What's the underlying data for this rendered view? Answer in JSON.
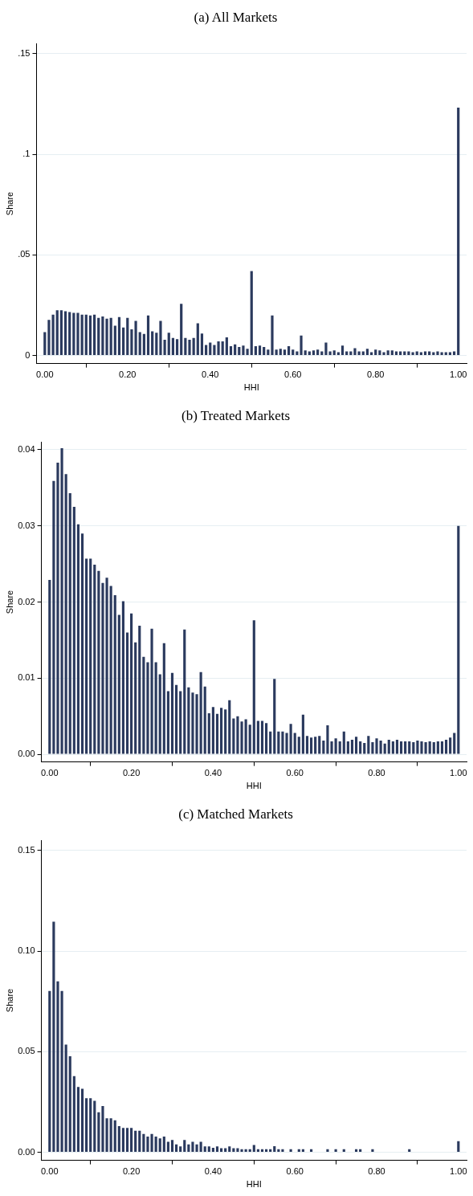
{
  "chart_data": [
    {
      "type": "bar",
      "title": "(a) All Markets",
      "xlabel": "HHI",
      "ylabel": "Share",
      "color": "#2b3a5e",
      "grid": "y",
      "x": [
        0,
        0.01,
        0.02,
        0.03,
        0.04,
        0.05,
        0.06,
        0.07,
        0.08,
        0.09,
        0.1,
        0.11,
        0.12,
        0.13,
        0.14,
        0.15,
        0.16,
        0.17,
        0.18,
        0.19,
        0.2,
        0.21,
        0.22,
        0.23,
        0.24,
        0.25,
        0.26,
        0.27,
        0.28,
        0.29,
        0.3,
        0.31,
        0.32,
        0.33,
        0.34,
        0.35,
        0.36,
        0.37,
        0.38,
        0.39,
        0.4,
        0.41,
        0.42,
        0.43,
        0.44,
        0.45,
        0.46,
        0.47,
        0.48,
        0.49,
        0.5,
        0.51,
        0.52,
        0.53,
        0.54,
        0.55,
        0.56,
        0.57,
        0.58,
        0.59,
        0.6,
        0.61,
        0.62,
        0.63,
        0.64,
        0.65,
        0.66,
        0.67,
        0.68,
        0.69,
        0.7,
        0.71,
        0.72,
        0.73,
        0.74,
        0.75,
        0.76,
        0.77,
        0.78,
        0.79,
        0.8,
        0.81,
        0.82,
        0.83,
        0.84,
        0.85,
        0.86,
        0.87,
        0.88,
        0.89,
        0.9,
        0.91,
        0.92,
        0.93,
        0.94,
        0.95,
        0.96,
        0.97,
        0.98,
        0.99,
        1
      ],
      "values": [
        0.0116,
        0.0177,
        0.0203,
        0.0225,
        0.0225,
        0.022,
        0.0216,
        0.0212,
        0.0212,
        0.0203,
        0.0203,
        0.0199,
        0.0203,
        0.0187,
        0.0194,
        0.0183,
        0.0187,
        0.0148,
        0.0191,
        0.0139,
        0.0187,
        0.013,
        0.0172,
        0.0116,
        0.0107,
        0.0199,
        0.012,
        0.0113,
        0.0172,
        0.0078,
        0.0113,
        0.0087,
        0.0081,
        0.0257,
        0.0087,
        0.0078,
        0.0087,
        0.016,
        0.0109,
        0.0052,
        0.0064,
        0.0052,
        0.007,
        0.007,
        0.009,
        0.0046,
        0.0055,
        0.0042,
        0.0049,
        0.0033,
        0.042,
        0.0046,
        0.0049,
        0.0042,
        0.0029,
        0.0199,
        0.0029,
        0.0033,
        0.0029,
        0.0046,
        0.0029,
        0.002,
        0.0099,
        0.0025,
        0.002,
        0.0025,
        0.0029,
        0.002,
        0.0064,
        0.002,
        0.0025,
        0.0016,
        0.0049,
        0.002,
        0.002,
        0.0036,
        0.002,
        0.002,
        0.0033,
        0.0016,
        0.0029,
        0.0025,
        0.0016,
        0.0025,
        0.0025,
        0.002,
        0.002,
        0.002,
        0.002,
        0.0016,
        0.002,
        0.0016,
        0.002,
        0.002,
        0.0016,
        0.002,
        0.0016,
        0.0016,
        0.0016,
        0.002,
        0.1232
      ],
      "xlim": [
        -0.02,
        1.02
      ],
      "xticks": [
        {
          "value": 0,
          "label": "0.00"
        },
        {
          "value": 0.2,
          "label": "0.20"
        },
        {
          "value": 0.4,
          "label": "0.40"
        },
        {
          "value": 0.6,
          "label": "0.60"
        },
        {
          "value": 0.8,
          "label": "0.80"
        },
        {
          "value": 1,
          "label": "1.00"
        }
      ],
      "ylim": [
        -0.004,
        0.155
      ],
      "yticks": [
        0,
        {
          "value": 0.05,
          "label": ".05"
        },
        {
          "value": 0.1,
          "label": ".1"
        },
        {
          "value": 0.15,
          "label": ".15"
        }
      ]
    },
    {
      "type": "bar",
      "title": "(b) Treated Markets",
      "xlabel": "HHI",
      "ylabel": "Share",
      "color": "#2b3a5e",
      "grid": "y",
      "x": [
        0,
        0.01,
        0.02,
        0.03,
        0.04,
        0.05,
        0.06,
        0.07,
        0.08,
        0.09,
        0.1,
        0.11,
        0.12,
        0.13,
        0.14,
        0.15,
        0.16,
        0.17,
        0.18,
        0.19,
        0.2,
        0.21,
        0.22,
        0.23,
        0.24,
        0.25,
        0.26,
        0.27,
        0.28,
        0.29,
        0.3,
        0.31,
        0.32,
        0.33,
        0.34,
        0.35,
        0.36,
        0.37,
        0.38,
        0.39,
        0.4,
        0.41,
        0.42,
        0.43,
        0.44,
        0.45,
        0.46,
        0.47,
        0.48,
        0.49,
        0.5,
        0.51,
        0.52,
        0.53,
        0.54,
        0.55,
        0.56,
        0.57,
        0.58,
        0.59,
        0.6,
        0.61,
        0.62,
        0.63,
        0.64,
        0.65,
        0.66,
        0.67,
        0.68,
        0.69,
        0.7,
        0.71,
        0.72,
        0.73,
        0.74,
        0.75,
        0.76,
        0.77,
        0.78,
        0.79,
        0.8,
        0.81,
        0.82,
        0.83,
        0.84,
        0.85,
        0.86,
        0.87,
        0.88,
        0.89,
        0.9,
        0.91,
        0.92,
        0.93,
        0.94,
        0.95,
        0.96,
        0.97,
        0.98,
        0.99,
        1
      ],
      "values": [
        0.0229,
        0.0359,
        0.0383,
        0.0402,
        0.0368,
        0.0343,
        0.0325,
        0.0302,
        0.029,
        0.0257,
        0.0257,
        0.0249,
        0.0241,
        0.0225,
        0.0232,
        0.0221,
        0.0209,
        0.0183,
        0.0201,
        0.016,
        0.0185,
        0.0147,
        0.0169,
        0.0128,
        0.0121,
        0.0165,
        0.0121,
        0.0105,
        0.0146,
        0.0083,
        0.0107,
        0.0091,
        0.0083,
        0.0164,
        0.0088,
        0.0081,
        0.0079,
        0.0108,
        0.0089,
        0.0054,
        0.0062,
        0.0053,
        0.0061,
        0.0059,
        0.0071,
        0.0047,
        0.005,
        0.0043,
        0.0046,
        0.0039,
        0.0176,
        0.0044,
        0.0044,
        0.0041,
        0.003,
        0.0099,
        0.003,
        0.003,
        0.0028,
        0.004,
        0.0028,
        0.0023,
        0.0052,
        0.0024,
        0.0022,
        0.0023,
        0.0024,
        0.0018,
        0.0038,
        0.0017,
        0.0021,
        0.0017,
        0.003,
        0.0017,
        0.0019,
        0.0023,
        0.0017,
        0.0015,
        0.0024,
        0.0016,
        0.0021,
        0.0018,
        0.0014,
        0.0019,
        0.0017,
        0.0019,
        0.0017,
        0.0017,
        0.0017,
        0.0016,
        0.0018,
        0.0017,
        0.0016,
        0.0017,
        0.0016,
        0.0017,
        0.0017,
        0.0019,
        0.0022,
        0.0028,
        0.03
      ],
      "xlim": [
        -0.02,
        1.02
      ],
      "xticks": [
        {
          "value": 0,
          "label": "0.00"
        },
        {
          "value": 0.2,
          "label": "0.20"
        },
        {
          "value": 0.4,
          "label": "0.40"
        },
        {
          "value": 0.6,
          "label": "0.60"
        },
        {
          "value": 0.8,
          "label": "0.80"
        },
        {
          "value": 1,
          "label": "1.00"
        }
      ],
      "ylim": [
        -0.001,
        0.041
      ],
      "yticks": [
        {
          "value": 0,
          "label": "0.00"
        },
        {
          "value": 0.01,
          "label": "0.01"
        },
        {
          "value": 0.02,
          "label": "0.02"
        },
        {
          "value": 0.03,
          "label": "0.03"
        },
        {
          "value": 0.04,
          "label": "0.04"
        }
      ]
    },
    {
      "type": "bar",
      "title": "(c) Matched Markets",
      "xlabel": "HHI",
      "ylabel": "Share",
      "color": "#2b3a5e",
      "grid": "y",
      "x": [
        0,
        0.01,
        0.02,
        0.03,
        0.04,
        0.05,
        0.06,
        0.07,
        0.08,
        0.09,
        0.1,
        0.11,
        0.12,
        0.13,
        0.14,
        0.15,
        0.16,
        0.17,
        0.18,
        0.19,
        0.2,
        0.21,
        0.22,
        0.23,
        0.24,
        0.25,
        0.26,
        0.27,
        0.28,
        0.29,
        0.3,
        0.31,
        0.32,
        0.33,
        0.34,
        0.35,
        0.36,
        0.37,
        0.38,
        0.39,
        0.4,
        0.41,
        0.42,
        0.43,
        0.44,
        0.45,
        0.46,
        0.47,
        0.48,
        0.49,
        0.5,
        0.51,
        0.52,
        0.53,
        0.54,
        0.55,
        0.56,
        0.57,
        0.58,
        0.59,
        0.6,
        0.61,
        0.62,
        0.63,
        0.64,
        0.65,
        0.66,
        0.67,
        0.68,
        0.69,
        0.7,
        0.71,
        0.72,
        0.73,
        0.74,
        0.75,
        0.76,
        0.77,
        0.78,
        0.79,
        0.8,
        0.81,
        0.82,
        0.83,
        0.84,
        0.85,
        0.86,
        0.87,
        0.88,
        0.89,
        0.9,
        0.91,
        0.92,
        0.93,
        0.94,
        0.95,
        0.96,
        0.97,
        0.98,
        0.99,
        1
      ],
      "values": [
        0.0802,
        0.1146,
        0.085,
        0.0802,
        0.0535,
        0.0477,
        0.0379,
        0.0325,
        0.0316,
        0.0269,
        0.0269,
        0.0256,
        0.0199,
        0.023,
        0.0169,
        0.0169,
        0.0159,
        0.013,
        0.0121,
        0.0121,
        0.0121,
        0.0107,
        0.0107,
        0.0091,
        0.0078,
        0.0091,
        0.0078,
        0.0069,
        0.0078,
        0.0052,
        0.0061,
        0.0039,
        0.0029,
        0.0061,
        0.0039,
        0.0052,
        0.0039,
        0.0052,
        0.0029,
        0.0029,
        0.0022,
        0.0029,
        0.002,
        0.002,
        0.0029,
        0.002,
        0.002,
        0.0015,
        0.0015,
        0.0015,
        0.0036,
        0.0015,
        0.0015,
        0.0015,
        0.0015,
        0.003,
        0.0015,
        0.0015,
        null,
        0.0015,
        null,
        0.0015,
        0.0015,
        null,
        0.0015,
        null,
        null,
        null,
        0.0015,
        null,
        0.0015,
        null,
        0.0015,
        null,
        null,
        0.0015,
        0.0015,
        null,
        null,
        0.0015,
        null,
        null,
        null,
        null,
        null,
        null,
        null,
        null,
        0.0015,
        null,
        null,
        null,
        null,
        null,
        null,
        null,
        null,
        null,
        null,
        null,
        0.0055
      ],
      "xlim": [
        -0.02,
        1.02
      ],
      "xticks": [
        {
          "value": 0,
          "label": "0.00"
        },
        {
          "value": 0.2,
          "label": "0.20"
        },
        {
          "value": 0.4,
          "label": "0.40"
        },
        {
          "value": 0.6,
          "label": "0.60"
        },
        {
          "value": 0.8,
          "label": "0.80"
        },
        {
          "value": 1,
          "label": "1.00"
        }
      ],
      "ylim": [
        -0.004,
        0.155
      ],
      "yticks": [
        {
          "value": 0,
          "label": "0.00"
        },
        {
          "value": 0.05,
          "label": "0.05"
        },
        {
          "value": 0.1,
          "label": "0.10"
        },
        {
          "value": 0.15,
          "label": "0.15"
        }
      ]
    }
  ]
}
